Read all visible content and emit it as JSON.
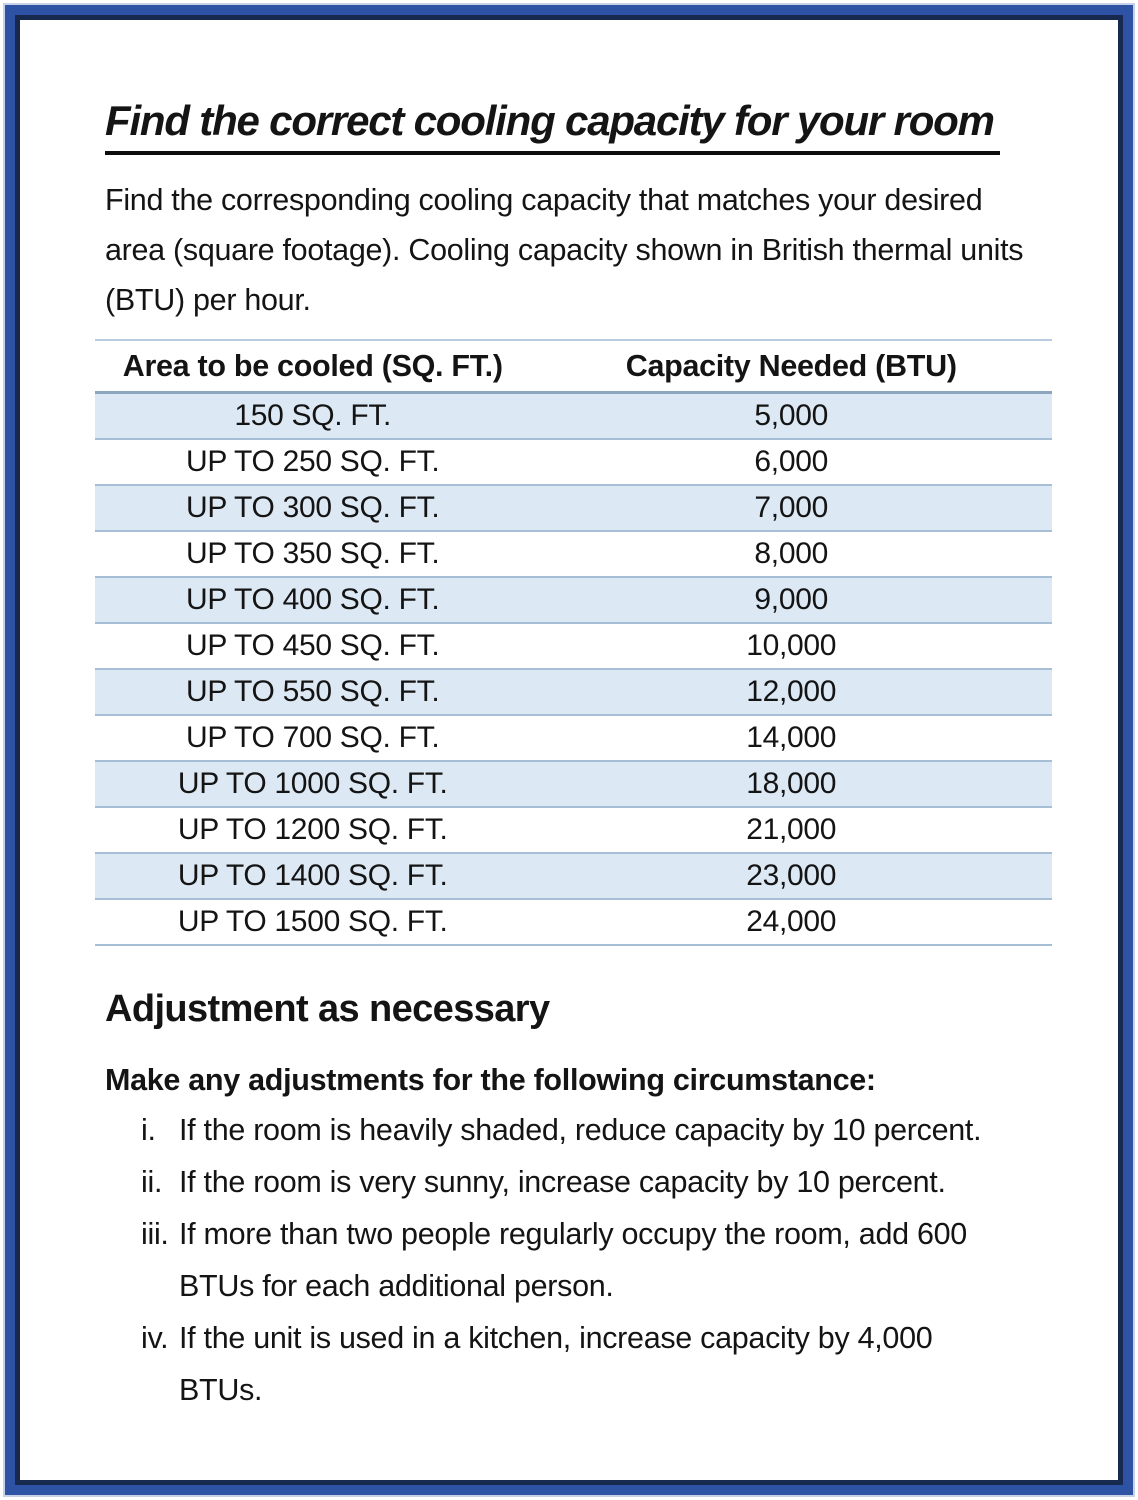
{
  "document": {
    "title": "Find the correct cooling capacity for your room",
    "intro": "Find the corresponding cooling capacity that matches your desired area (square footage). Cooling capacity shown in British thermal units (BTU) per hour."
  },
  "table": {
    "headers": {
      "area": "Area to be cooled (SQ. FT.)",
      "capacity": "Capacity Needed (BTU)"
    },
    "rows": [
      {
        "area": "150 SQ. FT.",
        "capacity": "5,000"
      },
      {
        "area": "UP TO 250 SQ. FT.",
        "capacity": "6,000"
      },
      {
        "area": "UP TO 300 SQ. FT.",
        "capacity": "7,000"
      },
      {
        "area": "UP TO 350 SQ. FT.",
        "capacity": "8,000"
      },
      {
        "area": "UP TO 400 SQ. FT.",
        "capacity": "9,000"
      },
      {
        "area": "UP TO 450 SQ. FT.",
        "capacity": "10,000"
      },
      {
        "area": "UP TO 550 SQ. FT.",
        "capacity": "12,000"
      },
      {
        "area": "UP TO 700 SQ. FT.",
        "capacity": "14,000"
      },
      {
        "area": "UP TO 1000 SQ. FT.",
        "capacity": "18,000"
      },
      {
        "area": "UP TO 1200 SQ. FT.",
        "capacity": "21,000"
      },
      {
        "area": "UP TO 1400 SQ. FT.",
        "capacity": "23,000"
      },
      {
        "area": "UP TO 1500 SQ. FT.",
        "capacity": "24,000"
      }
    ]
  },
  "adjustments": {
    "heading": "Adjustment as necessary",
    "intro": "Make any adjustments for the following circumstance:",
    "items": [
      {
        "marker": "i.",
        "text": "If the room is heavily shaded, reduce capacity by 10 percent."
      },
      {
        "marker": "ii.",
        "text": "If the room is very sunny, increase capacity by 10 percent."
      },
      {
        "marker": "iii.",
        "text": "If more than two people regularly occupy the room, add 600 BTUs for each additional person."
      },
      {
        "marker": "iv.",
        "text": "If the unit is used in a kitchen, increase capacity by 4,000 BTUs."
      }
    ]
  },
  "colors": {
    "frame_outer_blue": "#2e52a4",
    "frame_inner_navy": "#17294e",
    "row_shaded_blue": "#dce8f4",
    "row_divider": "#a6bfd7",
    "header_divider": "#8ba6be",
    "text": "#141414"
  }
}
